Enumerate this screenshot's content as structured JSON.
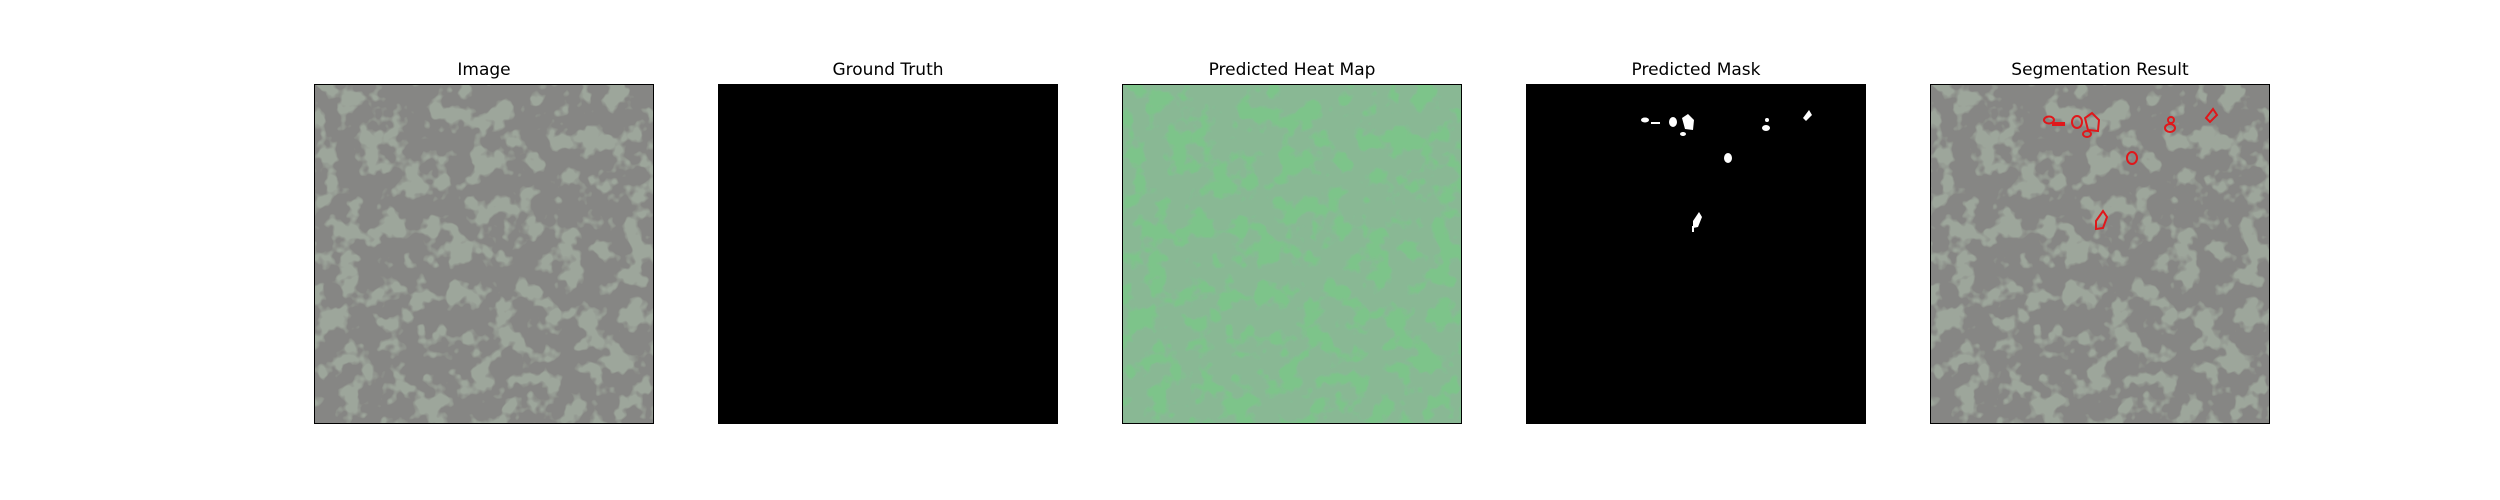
{
  "panels": [
    {
      "title": "Image",
      "content": "speckled gray granite-like texture"
    },
    {
      "title": "Ground Truth",
      "content": "all black mask"
    },
    {
      "title": "Predicted Heat Map",
      "content": "green-tinted texture overlay"
    },
    {
      "title": "Predicted Mask",
      "content": "black mask with small white blobs"
    },
    {
      "title": "Segmentation Result",
      "content": "texture with red contour outlines"
    }
  ],
  "colors": {
    "texture_base": "#9da69b",
    "texture_dark": "#3d3d3b",
    "heat_base": "#7dc48a",
    "heat_dark": "#3e7a4c",
    "mask_bg": "#000000",
    "mask_fg": "#ffffff",
    "contour": "#e0171b"
  }
}
